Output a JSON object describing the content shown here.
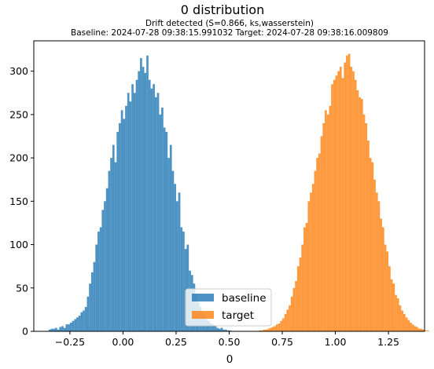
{
  "chart_data": {
    "type": "histogram",
    "title": "0 distribution",
    "subtitle_line1": "Drift detected (S=0.866, ks,wasserstein)",
    "subtitle_line2": "Baseline: 2024-07-28 09:38:15.991032 Target: 2024-07-28 09:38:16.009809",
    "xlabel": "0",
    "ylabel": "",
    "xlim": [
      -0.42,
      1.42
    ],
    "ylim": [
      0,
      335
    ],
    "xticks": [
      "−0.25",
      "0.00",
      "0.25",
      "0.50",
      "0.75",
      "1.00",
      "1.25"
    ],
    "xtick_values": [
      -0.25,
      0,
      0.25,
      0.5,
      0.75,
      1.0,
      1.25
    ],
    "yticks": [
      "0",
      "50",
      "100",
      "150",
      "200",
      "250",
      "300"
    ],
    "ytick_values": [
      0,
      50,
      100,
      150,
      200,
      250,
      300
    ],
    "grid": false,
    "legend_position": "lower center",
    "bin_width": 0.01,
    "series": [
      {
        "name": "baseline",
        "color": "#1f77b4",
        "alpha": 0.8,
        "bin_start": -0.35,
        "counts": [
          2,
          3,
          3,
          4,
          2,
          5,
          6,
          4,
          8,
          8,
          10,
          12,
          14,
          16,
          18,
          22,
          24,
          28,
          40,
          55,
          68,
          80,
          100,
          115,
          120,
          140,
          150,
          165,
          185,
          200,
          215,
          195,
          230,
          240,
          255,
          245,
          260,
          275,
          265,
          285,
          275,
          290,
          300,
          315,
          305,
          298,
          318,
          290,
          280,
          285,
          270,
          275,
          250,
          258,
          235,
          230,
          200,
          215,
          185,
          170,
          150,
          160,
          120,
          115,
          95,
          100,
          70,
          65,
          55,
          42,
          34,
          28,
          22,
          18,
          14,
          12,
          9,
          8,
          6,
          4,
          3,
          4,
          2,
          2,
          1,
          1
        ]
      },
      {
        "name": "target",
        "color": "#ff7f0e",
        "alpha": 0.8,
        "bin_start": 0.64,
        "counts": [
          1,
          1,
          2,
          2,
          3,
          4,
          5,
          6,
          8,
          9,
          12,
          15,
          20,
          25,
          30,
          40,
          50,
          58,
          75,
          85,
          100,
          120,
          125,
          150,
          160,
          170,
          185,
          200,
          205,
          225,
          240,
          255,
          250,
          260,
          285,
          290,
          295,
          300,
          305,
          292,
          310,
          318,
          320,
          305,
          300,
          290,
          278,
          270,
          268,
          250,
          240,
          220,
          200,
          195,
          175,
          160,
          150,
          130,
          120,
          100,
          92,
          75,
          60,
          55,
          42,
          38,
          30,
          24,
          20,
          16,
          13,
          10,
          8,
          6,
          5,
          3,
          3,
          2,
          1,
          1
        ]
      }
    ]
  }
}
